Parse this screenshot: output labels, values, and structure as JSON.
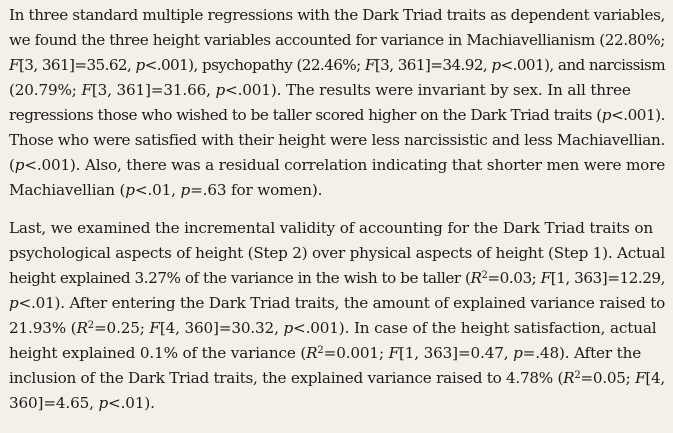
{
  "paragraphs": [
    {
      "lines": [
        "In three standard multiple regressions with the Dark Triad traits as dependent variables,",
        "we found the three height variables accounted for variance in Machiavellianism (22.80%;",
        "F[3, 361]=35.62, p<.001), psychopathy (22.46%; F[3, 361]=34.92, p<.001), and narcissism",
        "(20.79%; F[3, 361]=31.66, p<.001). The results were invariant by sex. In all three",
        "regressions those who wished to be taller scored higher on the Dark Triad traits (p<.001).",
        "Those who were satisfied with their height were less narcissistic and less Machiavellian.",
        "(p<.001). Also, there was a residual correlation indicating that shorter men were more",
        "Machiavellian (p<.01, p=.63 for women)."
      ]
    },
    {
      "lines": [
        "Last, we examined the incremental validity of accounting for the Dark Triad traits on",
        "psychological aspects of height (Step 2) over physical aspects of height (Step 1). Actual",
        "height explained 3.27% of the variance in the wish to be taller (R²=0.03; F[1, 363]=12.29,",
        "p<.01). After entering the Dark Triad traits, the amount of explained variance raised to",
        "21.93% (R²=0.25; F[4, 360]=30.32, p<.001). In case of the height satisfaction, actual",
        "height explained 0.1% of the variance (R²=0.001; F[1, 363]=0.47, p=.48). After the",
        "inclusion of the Dark Triad traits, the explained variance raised to 4.78% (R²=0.05; F[4,",
        "360]=4.65, p<.01)."
      ]
    }
  ]
}
